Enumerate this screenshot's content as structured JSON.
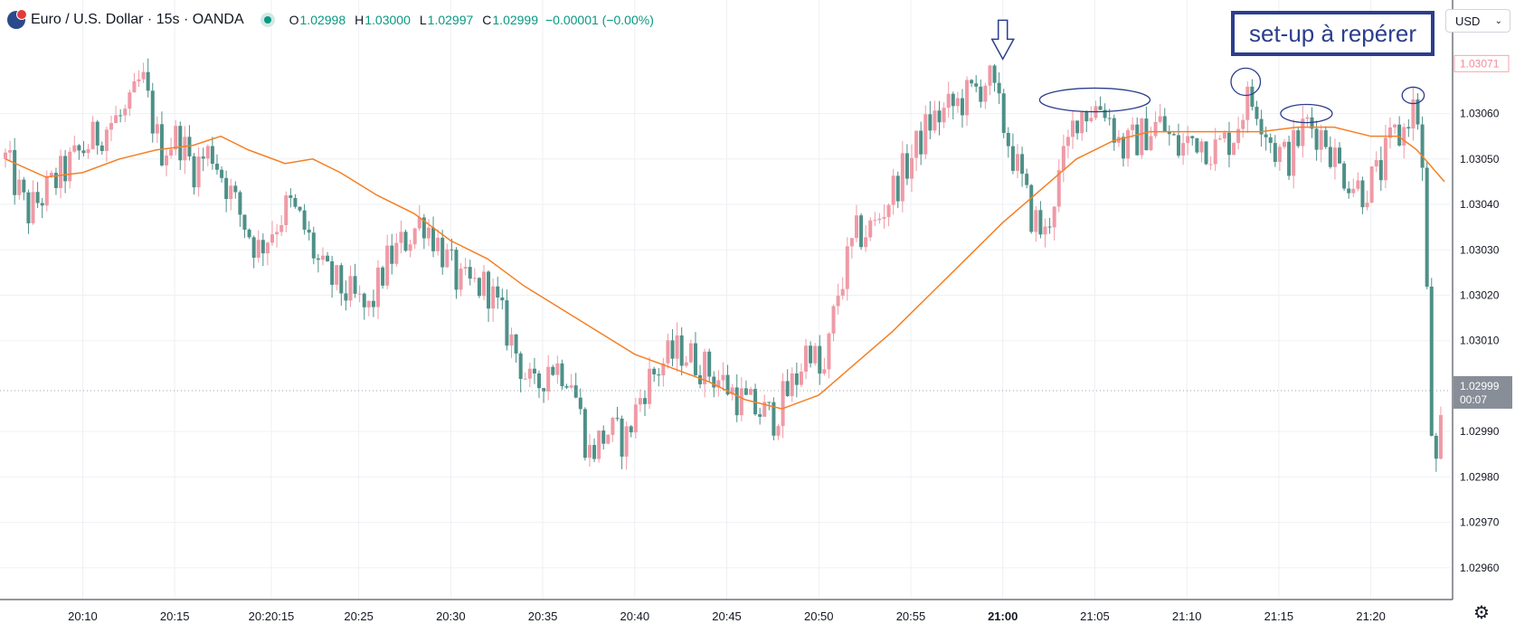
{
  "header": {
    "symbol": "Euro / U.S. Dollar · 15s · OANDA",
    "ohlc": [
      {
        "label": "O",
        "value": "1.02998"
      },
      {
        "label": "H",
        "value": "1.03000"
      },
      {
        "label": "L",
        "value": "1.02997"
      },
      {
        "label": "C",
        "value": "1.02999"
      }
    ],
    "change": "−0.00001 (−0.00%)"
  },
  "annotation": {
    "text": "set-up à repérer"
  },
  "price_scale": {
    "currency": "USD",
    "last_price": "1.02999",
    "countdown": "00:07",
    "high_marker": "1.03071"
  },
  "colors": {
    "up": "#ef9aa6",
    "down": "#4d9088",
    "ma": "#f57f24",
    "annotation": "#2c3e8c",
    "grid": "#eef0f4"
  },
  "chart_data": {
    "type": "candlestick",
    "x_ticks": [
      "20:10",
      "20:15",
      "20:20:15",
      "20:25",
      "20:30",
      "20:35",
      "20:40",
      "20:45",
      "20:50",
      "20:55",
      "21:00",
      "21:05",
      "21:10",
      "21:15",
      "21:20"
    ],
    "y_ticks": [
      "1.03060",
      "1.03050",
      "1.03040",
      "1.03030",
      "1.03020",
      "1.03010",
      "1.02990",
      "1.02980",
      "1.02970",
      "1.02960"
    ],
    "ylim": [
      1.02953,
      1.03085
    ],
    "x_tick_minutes": [
      10,
      15,
      20.25,
      25,
      30,
      35,
      40,
      45,
      50,
      55,
      60,
      65,
      70,
      75,
      80
    ],
    "xlim_minutes": [
      5.8,
      84
    ],
    "interval_seconds": 15,
    "close_points": [
      [
        5.8,
        1.0305
      ],
      [
        7.0,
        1.03038
      ],
      [
        8.5,
        1.03045
      ],
      [
        10.0,
        1.03052
      ],
      [
        11.5,
        1.03058
      ],
      [
        12.5,
        1.0306
      ],
      [
        13.2,
        1.03068
      ],
      [
        14.2,
        1.03052
      ],
      [
        15.2,
        1.03055
      ],
      [
        16.0,
        1.03048
      ],
      [
        17.0,
        1.03052
      ],
      [
        18.3,
        1.0304
      ],
      [
        19.5,
        1.0303
      ],
      [
        21.2,
        1.0304
      ],
      [
        22.0,
        1.03035
      ],
      [
        23.0,
        1.03025
      ],
      [
        24.5,
        1.0302
      ],
      [
        25.5,
        1.03016
      ],
      [
        26.5,
        1.03027
      ],
      [
        27.5,
        1.03032
      ],
      [
        28.5,
        1.03037
      ],
      [
        29.5,
        1.0303
      ],
      [
        30.5,
        1.03022
      ],
      [
        32.0,
        1.03022
      ],
      [
        33.5,
        1.03008
      ],
      [
        34.5,
        1.02998
      ],
      [
        35.3,
        1.03005
      ],
      [
        36.5,
        1.03003
      ],
      [
        37.5,
        1.02985
      ],
      [
        38.5,
        1.0299
      ],
      [
        39.5,
        1.02988
      ],
      [
        40.5,
        1.03
      ],
      [
        41.5,
        1.03005
      ],
      [
        42.5,
        1.03008
      ],
      [
        43.5,
        1.03005
      ],
      [
        45.0,
        1.03
      ],
      [
        46.0,
        1.02996
      ],
      [
        47.5,
        1.02993
      ],
      [
        48.8,
        1.03002
      ],
      [
        49.5,
        1.0301
      ],
      [
        50.2,
        1.03
      ],
      [
        51.0,
        1.0302
      ],
      [
        52.0,
        1.03033
      ],
      [
        53.0,
        1.03035
      ],
      [
        54.0,
        1.03043
      ],
      [
        55.0,
        1.0305
      ],
      [
        56.0,
        1.03058
      ],
      [
        57.5,
        1.03062
      ],
      [
        58.5,
        1.03065
      ],
      [
        59.2,
        1.03068
      ],
      [
        60.0,
        1.03058
      ],
      [
        61.0,
        1.03045
      ],
      [
        61.5,
        1.03038
      ],
      [
        62.3,
        1.03033
      ],
      [
        62.8,
        1.03042
      ],
      [
        63.5,
        1.03052
      ],
      [
        64.0,
        1.0306
      ],
      [
        65.5,
        1.03062
      ],
      [
        66.5,
        1.03052
      ],
      [
        67.5,
        1.03055
      ],
      [
        68.5,
        1.03058
      ],
      [
        69.5,
        1.03052
      ],
      [
        70.5,
        1.03055
      ],
      [
        71.5,
        1.03052
      ],
      [
        72.5,
        1.03055
      ],
      [
        73.2,
        1.03063
      ],
      [
        73.8,
        1.03062
      ],
      [
        74.8,
        1.03052
      ],
      [
        75.5,
        1.0305
      ],
      [
        76.5,
        1.03058
      ],
      [
        77.5,
        1.03055
      ],
      [
        78.3,
        1.03048
      ],
      [
        79.5,
        1.03043
      ],
      [
        80.5,
        1.03047
      ],
      [
        81.2,
        1.03055
      ],
      [
        81.7,
        1.03055
      ],
      [
        82.2,
        1.03062
      ],
      [
        82.7,
        1.03058
      ],
      [
        83.0,
        1.03025
      ],
      [
        83.3,
        1.0299
      ],
      [
        83.6,
        1.0298
      ],
      [
        84.0,
        1.02999
      ]
    ],
    "ma_points": [
      [
        5.8,
        1.0305
      ],
      [
        8.0,
        1.03046
      ],
      [
        10.0,
        1.03047
      ],
      [
        12.0,
        1.0305
      ],
      [
        14.0,
        1.03052
      ],
      [
        16.0,
        1.03053
      ],
      [
        17.5,
        1.03055
      ],
      [
        19.0,
        1.03052
      ],
      [
        21.0,
        1.03049
      ],
      [
        22.5,
        1.0305
      ],
      [
        24.0,
        1.03047
      ],
      [
        26.0,
        1.03042
      ],
      [
        28.0,
        1.03038
      ],
      [
        30.0,
        1.03032
      ],
      [
        32.0,
        1.03028
      ],
      [
        34.0,
        1.03022
      ],
      [
        36.0,
        1.03017
      ],
      [
        38.0,
        1.03012
      ],
      [
        40.0,
        1.03007
      ],
      [
        42.0,
        1.03004
      ],
      [
        44.0,
        1.03001
      ],
      [
        46.0,
        1.02997
      ],
      [
        48.0,
        1.02995
      ],
      [
        50.0,
        1.02998
      ],
      [
        52.0,
        1.03005
      ],
      [
        54.0,
        1.03012
      ],
      [
        56.0,
        1.0302
      ],
      [
        58.0,
        1.03028
      ],
      [
        60.0,
        1.03036
      ],
      [
        62.0,
        1.03043
      ],
      [
        64.0,
        1.0305
      ],
      [
        66.0,
        1.03054
      ],
      [
        68.0,
        1.03056
      ],
      [
        70.0,
        1.03056
      ],
      [
        72.0,
        1.03056
      ],
      [
        74.0,
        1.03056
      ],
      [
        76.0,
        1.03057
      ],
      [
        78.0,
        1.03057
      ],
      [
        80.0,
        1.03055
      ],
      [
        81.5,
        1.03055
      ],
      [
        82.5,
        1.03052
      ],
      [
        84.0,
        1.03045
      ]
    ],
    "arrow": {
      "x": 60.0,
      "y": 1.03071
    },
    "circles": [
      {
        "x": 65.0,
        "y": 1.03063,
        "rx": 3.0,
        "ry": 2.6e-05
      },
      {
        "x": 73.2,
        "y": 1.03067,
        "rx": 0.8,
        "ry": 3e-05
      },
      {
        "x": 76.5,
        "y": 1.0306,
        "rx": 1.4,
        "ry": 2e-05
      },
      {
        "x": 82.3,
        "y": 1.03064,
        "rx": 0.6,
        "ry": 1.8e-05
      }
    ],
    "seed": 12345
  }
}
